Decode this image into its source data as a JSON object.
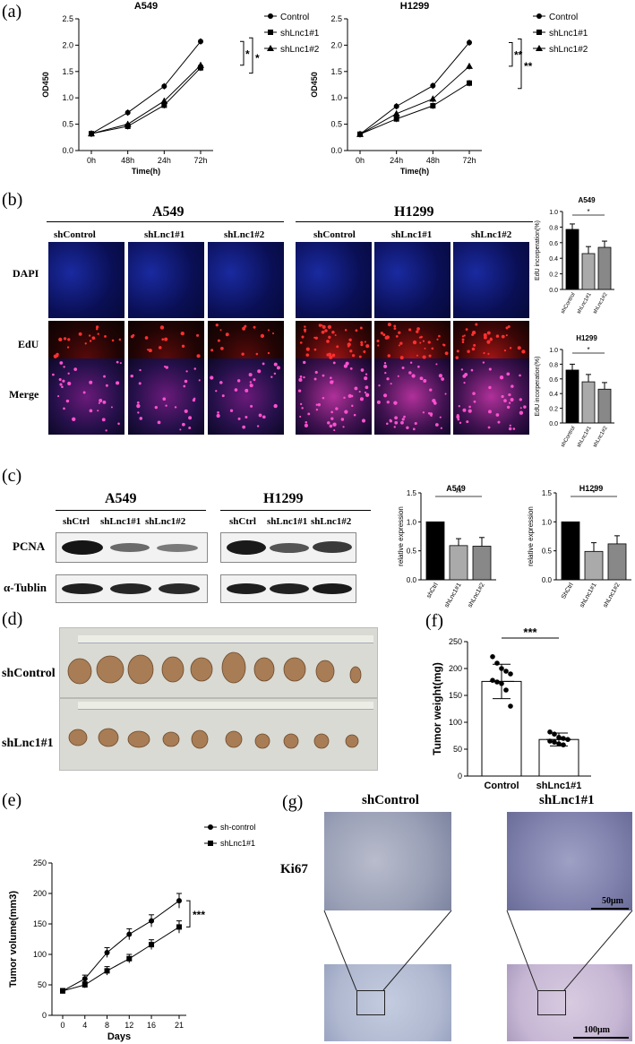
{
  "panel_labels": {
    "a": "(a)",
    "b": "(b)",
    "c": "(c)",
    "d": "(d)",
    "e": "(e)",
    "f": "(f)",
    "g": "(g)"
  },
  "chart_data": [
    {
      "id": "a-left",
      "type": "line",
      "title": "A549",
      "xlabel": "Time(h)",
      "ylabel": "OD450",
      "categories": [
        "0h",
        "48h",
        "24h",
        "72h"
      ],
      "ylim": [
        0,
        2.5
      ],
      "yticks": [
        "0.0",
        "0.5",
        "1.0",
        "1.5",
        "2.0",
        "2.5"
      ],
      "series": [
        {
          "name": "Control",
          "values": [
            0.32,
            0.72,
            1.22,
            2.07
          ]
        },
        {
          "name": "shLnc1#1",
          "values": [
            0.32,
            0.46,
            0.86,
            1.57
          ]
        },
        {
          "name": "shLnc1#2",
          "values": [
            0.32,
            0.5,
            0.94,
            1.62
          ]
        }
      ],
      "annotations": [
        "*",
        "*"
      ],
      "legend": "right"
    },
    {
      "id": "a-right",
      "type": "line",
      "title": "H1299",
      "xlabel": "Time(h)",
      "ylabel": "OD450",
      "categories": [
        "0h",
        "24h",
        "48h",
        "72h"
      ],
      "ylim": [
        0,
        2.5
      ],
      "yticks": [
        "0.0",
        "0.5",
        "1.0",
        "1.5",
        "2.0",
        "2.5"
      ],
      "series": [
        {
          "name": "Control",
          "values": [
            0.31,
            0.84,
            1.23,
            2.05
          ]
        },
        {
          "name": "shLnc1#1",
          "values": [
            0.31,
            0.6,
            0.85,
            1.28
          ]
        },
        {
          "name": "shLnc1#2",
          "values": [
            0.31,
            0.7,
            0.98,
            1.6
          ]
        }
      ],
      "annotations": [
        "**",
        "**"
      ],
      "legend": "right"
    },
    {
      "id": "b-a549",
      "type": "bar",
      "title": "A549",
      "ylabel": "EdU incorperation(%)",
      "categories": [
        "shControl",
        "shLnc1#1",
        "shLnc1#2"
      ],
      "values": [
        0.77,
        0.46,
        0.54
      ],
      "errors": [
        0.07,
        0.09,
        0.08
      ],
      "ylim": [
        0,
        1.0
      ],
      "yticks": [
        "0.0",
        "0.2",
        "0.4",
        "0.6",
        "0.8",
        "1.0"
      ],
      "sig": "*"
    },
    {
      "id": "b-h1299",
      "type": "bar",
      "title": "H1299",
      "ylabel": "EdU incorperation(%)",
      "categories": [
        "shControl",
        "shLnc1#1",
        "shLnc1#2"
      ],
      "values": [
        0.72,
        0.56,
        0.46
      ],
      "errors": [
        0.08,
        0.1,
        0.09
      ],
      "ylim": [
        0,
        1.0
      ],
      "yticks": [
        "0.0",
        "0.2",
        "0.4",
        "0.6",
        "0.8",
        "1.0"
      ],
      "sig": "*"
    },
    {
      "id": "c-a549",
      "type": "bar",
      "title": "A549",
      "ylabel": "relative expression",
      "categories": [
        "shCtrl",
        "shLnc1#1",
        "shLnc1#2"
      ],
      "values": [
        1.0,
        0.59,
        0.58
      ],
      "errors": [
        0,
        0.12,
        0.15
      ],
      "ylim": [
        0,
        1.5
      ],
      "yticks": [
        "0.0",
        "0.5",
        "1.0",
        "1.5"
      ],
      "sig": "**"
    },
    {
      "id": "c-h1299",
      "type": "bar",
      "title": "H1299",
      "ylabel": "relative expression",
      "categories": [
        "ShCtrl",
        "shLnc1#1",
        "shLnc1#2"
      ],
      "values": [
        1.0,
        0.49,
        0.62
      ],
      "errors": [
        0,
        0.15,
        0.14
      ],
      "ylim": [
        0,
        1.5
      ],
      "yticks": [
        "0.0",
        "0.5",
        "1.0",
        "1.5"
      ],
      "sig": "*"
    },
    {
      "id": "f",
      "type": "bar",
      "ylabel": "Tumor weight(mg)",
      "categories": [
        "Control",
        "shLnc1#1"
      ],
      "values": [
        176,
        68
      ],
      "errors": [
        32,
        12
      ],
      "ylim": [
        0,
        250
      ],
      "yticks": [
        "0",
        "50",
        "100",
        "150",
        "200",
        "250"
      ],
      "sig": "***",
      "points": [
        [
          222,
          210,
          200,
          195,
          190,
          178,
          175,
          172,
          160,
          130
        ],
        [
          82,
          78,
          72,
          70,
          68,
          65,
          63,
          60,
          58
        ]
      ]
    },
    {
      "id": "e",
      "type": "line",
      "xlabel": "Days",
      "ylabel": "Tumor volume(mm3)",
      "x": [
        0,
        4,
        8,
        12,
        16,
        21
      ],
      "ylim": [
        0,
        250
      ],
      "yticks": [
        "0",
        "50",
        "100",
        "150",
        "200",
        "250"
      ],
      "xticks": [
        "0",
        "4",
        "8",
        "12",
        "16",
        "21"
      ],
      "series": [
        {
          "name": "sh-control",
          "values": [
            40,
            60,
            103,
            133,
            155,
            188
          ],
          "errors": [
            4,
            6,
            8,
            9,
            10,
            12
          ]
        },
        {
          "name": "shLnc1#1",
          "values": [
            40,
            50,
            73,
            93,
            116,
            145
          ],
          "errors": [
            4,
            5,
            7,
            7,
            8,
            10
          ]
        }
      ],
      "sig": "***",
      "legend": "top-right"
    }
  ],
  "panel_b": {
    "groups": [
      "A549",
      "H1299"
    ],
    "columns": [
      "shControl",
      "shLnc1#1",
      "shLnc1#2",
      "shControl",
      "shLnc1#1",
      "shLnc1#2"
    ],
    "rows": [
      "DAPI",
      "EdU",
      "Merge"
    ]
  },
  "panel_c": {
    "groups": [
      "A549",
      "H1299"
    ],
    "lanes": [
      "shCtrl",
      "shLnc1#1",
      "shLnc1#2",
      "shCtrl",
      "shLnc1#1",
      "shLnc1#2"
    ],
    "rows": [
      "PCNA",
      "α-Tublin"
    ]
  },
  "panel_d": {
    "rows": [
      "shControl",
      "shLnc1#1"
    ]
  },
  "panel_g": {
    "columns": [
      "shControl",
      "shLnc1#1"
    ],
    "row": "Ki67",
    "scale_top": "50μm",
    "scale_bottom": "100μm"
  }
}
